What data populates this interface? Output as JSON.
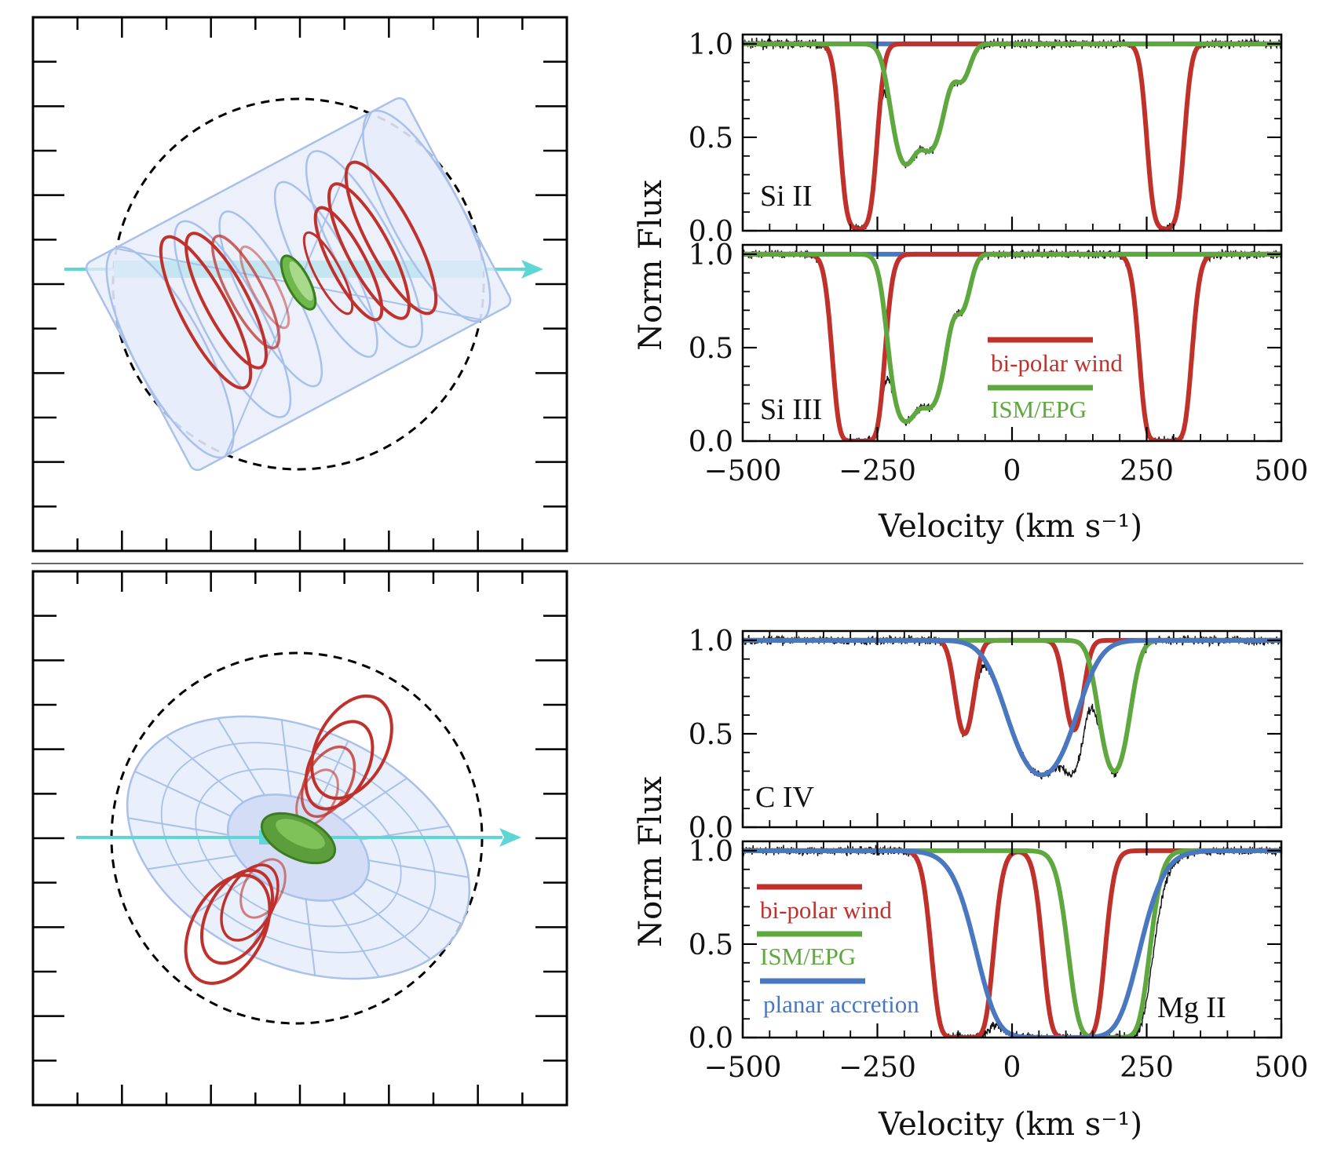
{
  "colors": {
    "wind": "#c0312b",
    "ism": "#5fa83f",
    "accretion": "#4a78c0",
    "sightline": "#5fd6d6",
    "disk_edge": "#a9c0ea",
    "disk_fill": "#e4ebfa",
    "galaxy": "#4f9a33",
    "data": "#111111"
  },
  "chart_data": [
    {
      "type": "line",
      "name": "top-panel",
      "xlabel": "Velocity (km s⁻¹)",
      "ylabel": "Norm Flux",
      "xlim": [
        -500,
        500
      ],
      "x_ticks": [
        -500,
        -250,
        0,
        250,
        500
      ],
      "x_tick_labels": [
        "−500",
        "−250",
        "0",
        "250",
        "500"
      ],
      "legend": [
        {
          "label": "bi-polar wind",
          "color": "#c0312b"
        },
        {
          "label": "ISM/EPG",
          "color": "#5fa83f"
        }
      ],
      "subplots": [
        {
          "ion": "Si II",
          "ylim": [
            0,
            1.05
          ],
          "y_ticks": [
            0.0,
            0.5,
            1.0
          ],
          "y_tick_labels": [
            "0.0",
            "0.5",
            "1.0"
          ],
          "models": [
            {
              "name": "continuum",
              "color": "accretion",
              "components": []
            },
            {
              "name": "bi-polar wind",
              "color": "wind",
              "components": [
                {
                  "v": -285,
                  "depth": 0.99,
                  "width": 18
                },
                {
                  "v": 285,
                  "depth": 0.99,
                  "width": 18
                }
              ]
            },
            {
              "name": "ISM/EPG",
              "color": "ism",
              "components": [
                {
                  "v": -200,
                  "depth": 0.62,
                  "width": 20
                },
                {
                  "v": -150,
                  "depth": 0.55,
                  "width": 22
                },
                {
                  "v": -92,
                  "depth": 0.18,
                  "width": 14
                }
              ]
            }
          ]
        },
        {
          "ion": "Si III",
          "ylim": [
            0,
            1.05
          ],
          "y_ticks": [
            0.0,
            0.5,
            1.0
          ],
          "y_tick_labels": [
            "0.0",
            "0.5",
            "1.0"
          ],
          "models": [
            {
              "name": "continuum",
              "color": "accretion",
              "components": []
            },
            {
              "name": "bi-polar wind",
              "color": "wind",
              "components": [
                {
                  "v": -285,
                  "depth": 1.0,
                  "width": 22
                },
                {
                  "v": 285,
                  "depth": 1.0,
                  "width": 22
                }
              ]
            },
            {
              "name": "ISM/EPG",
              "color": "ism",
              "components": [
                {
                  "v": -200,
                  "depth": 0.88,
                  "width": 20
                },
                {
                  "v": -150,
                  "depth": 0.8,
                  "width": 22
                },
                {
                  "v": -92,
                  "depth": 0.27,
                  "width": 14
                }
              ]
            }
          ]
        }
      ]
    },
    {
      "type": "line",
      "name": "bottom-panel",
      "xlabel": "Velocity (km s⁻¹)",
      "ylabel": "Norm Flux",
      "xlim": [
        -500,
        500
      ],
      "x_ticks": [
        -500,
        -250,
        0,
        250,
        500
      ],
      "x_tick_labels": [
        "−500",
        "−250",
        "0",
        "250",
        "500"
      ],
      "legend": [
        {
          "label": "bi-polar wind",
          "color": "#c0312b"
        },
        {
          "label": "ISM/EPG",
          "color": "#5fa83f"
        },
        {
          "label": "planar accretion",
          "color": "#4a78c0"
        }
      ],
      "subplots": [
        {
          "ion": "C IV",
          "ylim": [
            0,
            1.05
          ],
          "y_ticks": [
            0.0,
            0.5,
            1.0
          ],
          "y_tick_labels": [
            "0.0",
            "0.5",
            "1.0"
          ],
          "models": [
            {
              "name": "bi-polar wind",
              "color": "wind",
              "components": [
                {
                  "v": -88,
                  "depth": 0.5,
                  "width": 15
                },
                {
                  "v": 115,
                  "depth": 0.48,
                  "width": 15
                }
              ]
            },
            {
              "name": "ISM/EPG",
              "color": "ism",
              "components": [
                {
                  "v": 190,
                  "depth": 0.7,
                  "width": 22
                }
              ]
            },
            {
              "name": "planar accretion",
              "color": "accretion",
              "components": [
                {
                  "v": 55,
                  "depth": 0.72,
                  "width": 48
                }
              ]
            }
          ]
        },
        {
          "ion": "Mg II",
          "ylim": [
            0,
            1.05
          ],
          "y_ticks": [
            0.0,
            0.5,
            1.0
          ],
          "y_tick_labels": [
            "0.0",
            "0.5",
            "1.0"
          ],
          "models": [
            {
              "name": "bi-polar wind",
              "color": "wind",
              "components": [
                {
                  "v": -92,
                  "depth": 1.0,
                  "width": 26
                },
                {
                  "v": 115,
                  "depth": 1.0,
                  "width": 26
                }
              ]
            },
            {
              "name": "ISM/EPG",
              "color": "ism",
              "components": [
                {
                  "v": 180,
                  "depth": 1.0,
                  "width": 34
                }
              ]
            },
            {
              "name": "planar accretion",
              "color": "accretion",
              "components": [
                {
                  "v": 85,
                  "depth": 1.0,
                  "width": 68
                }
              ]
            }
          ]
        }
      ]
    }
  ]
}
